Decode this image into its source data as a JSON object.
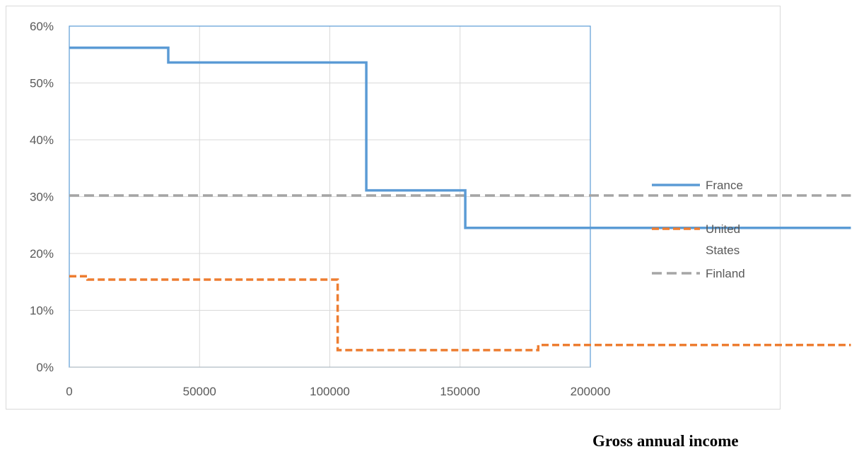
{
  "chart_data": {
    "type": "line",
    "title": "",
    "xlabel": "Gross annual income",
    "ylabel": "",
    "xlim": [
      0,
      300000
    ],
    "ylim": [
      0,
      0.6
    ],
    "x_ticks": [
      0,
      50000,
      100000,
      150000,
      200000
    ],
    "x_tick_labels": [
      "0",
      "50000",
      "100000",
      "150000",
      "200000"
    ],
    "y_ticks": [
      0,
      0.1,
      0.2,
      0.3,
      0.4,
      0.5,
      0.6
    ],
    "y_tick_labels": [
      "0%",
      "10%",
      "20%",
      "30%",
      "40%",
      "50%",
      "60%"
    ],
    "grid": true,
    "legend_position": "right",
    "series": [
      {
        "name": "France",
        "color": "#5b9bd5",
        "style": "solid",
        "points": [
          [
            0,
            0.562
          ],
          [
            38000,
            0.562
          ],
          [
            38000,
            0.536
          ],
          [
            114000,
            0.536
          ],
          [
            114000,
            0.311
          ],
          [
            152000,
            0.311
          ],
          [
            152000,
            0.245
          ],
          [
            300000,
            0.245
          ]
        ]
      },
      {
        "name": "United States",
        "legend_lines": [
          "United",
          "States"
        ],
        "color": "#ed7d31",
        "style": "dashed",
        "points": [
          [
            0,
            0.16
          ],
          [
            7000,
            0.16
          ],
          [
            7000,
            0.154
          ],
          [
            103000,
            0.154
          ],
          [
            103000,
            0.03
          ],
          [
            180000,
            0.03
          ],
          [
            180000,
            0.039
          ],
          [
            300000,
            0.039
          ]
        ]
      },
      {
        "name": "Finland",
        "color": "#a5a5a5",
        "style": "dashed",
        "points": [
          [
            0,
            0.302
          ],
          [
            300000,
            0.302
          ]
        ]
      }
    ]
  }
}
